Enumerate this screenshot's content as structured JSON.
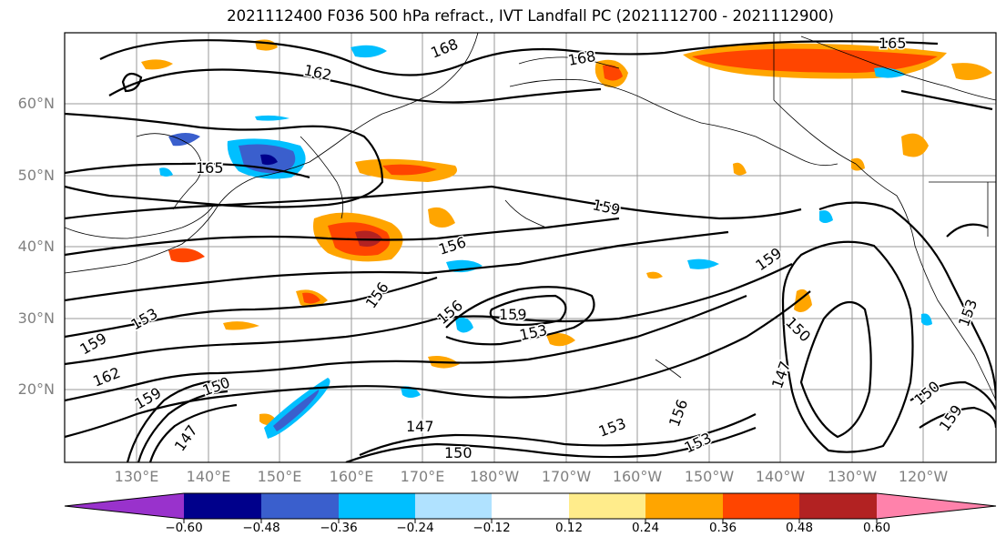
{
  "title": "2021112400 F036 500 hPa refract., IVT Landfall PC (2021112700 - 2021112900)",
  "lat_labels": [
    "60°N",
    "50°N",
    "40°N",
    "30°N",
    "20°N"
  ],
  "lon_labels": [
    "130°E",
    "140°E",
    "150°E",
    "160°E",
    "170°E",
    "180°W",
    "170°W",
    "160°W",
    "150°W",
    "140°W",
    "130°W",
    "120°W"
  ],
  "colorbar": {
    "ticks": [
      "−0.60",
      "−0.48",
      "−0.36",
      "−0.24",
      "−0.12",
      "0.12",
      "0.24",
      "0.36",
      "0.48",
      "0.60"
    ],
    "colors": [
      "#9932cc",
      "#00008b",
      "#3a5fcd",
      "#00bfff",
      "#b0e2ff",
      "#ffffff",
      "#ffec8b",
      "#ffa500",
      "#ff4500",
      "#b22222",
      "#ff82ab"
    ]
  },
  "contour_labels": [
    "168",
    "162",
    "168",
    "165",
    "165",
    "159",
    "156",
    "156",
    "156",
    "159",
    "153",
    "153",
    "159",
    "162",
    "159",
    "150",
    "147",
    "147",
    "150",
    "153",
    "156",
    "159",
    "153",
    "150",
    "147",
    "150",
    "159",
    "153",
    "156",
    "150",
    "153",
    "159"
  ]
}
